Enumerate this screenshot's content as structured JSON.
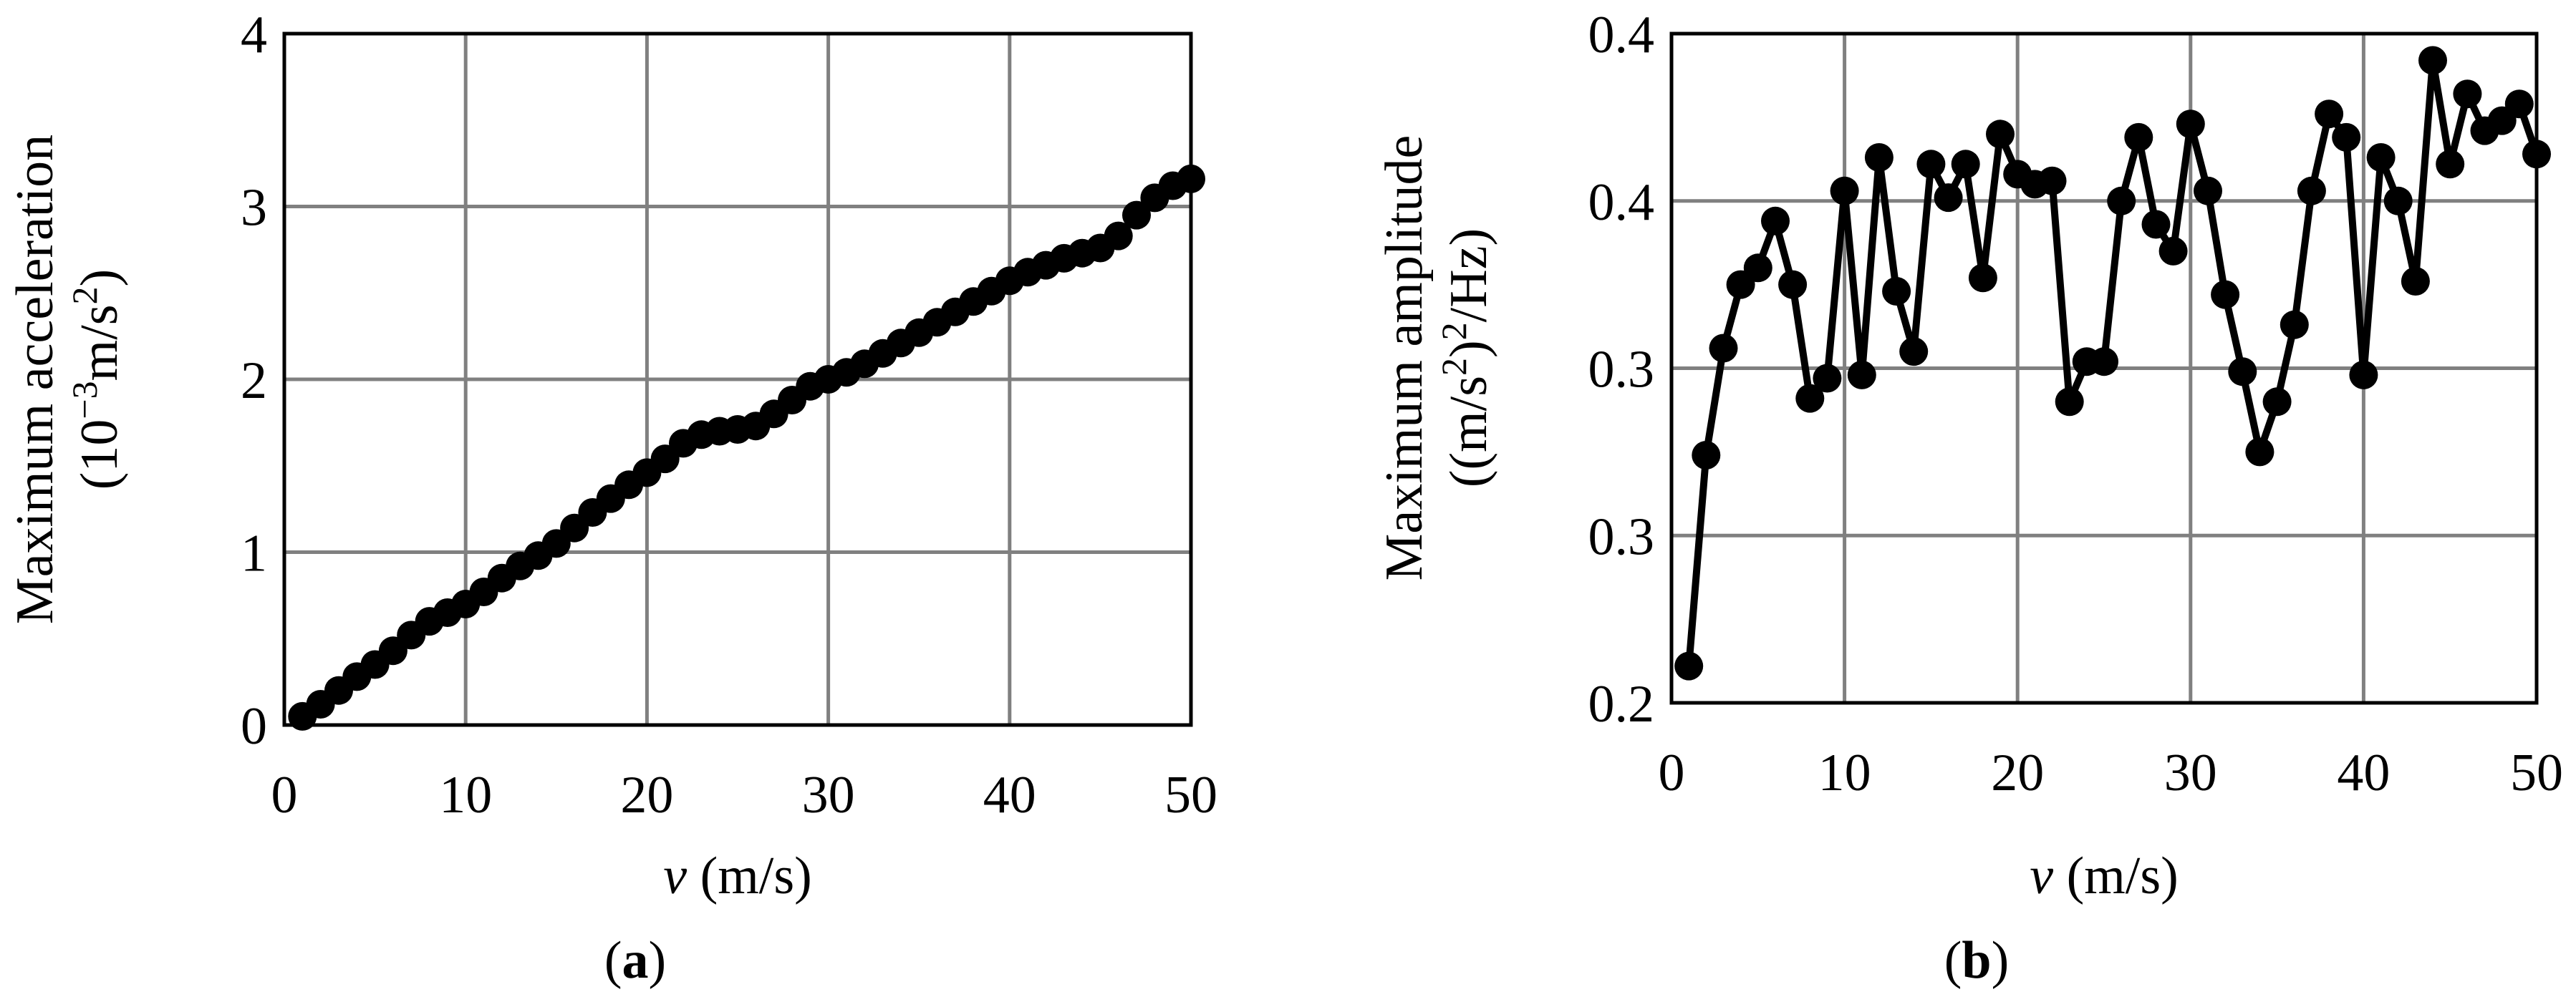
{
  "chart_data": [
    {
      "type": "line",
      "panel_label": "a",
      "ylabel_line1": "Maximum acceleration",
      "ylabel_line2_prefix": "(10",
      "ylabel_line2_exp": "−3",
      "ylabel_line2_mid": "m/s",
      "ylabel_line2_exp2": "2",
      "ylabel_line2_suffix": ")",
      "xlabel_var": "v",
      "xlabel_unit": " (m/s)",
      "xlim": [
        0,
        50
      ],
      "ylim": [
        0,
        4
      ],
      "xticks": [
        "0",
        "10",
        "20",
        "30",
        "40",
        "50"
      ],
      "yticks": [
        "0",
        "1",
        "2",
        "3",
        "4"
      ],
      "grid": true,
      "x": [
        1,
        2,
        3,
        4,
        5,
        6,
        7,
        8,
        9,
        10,
        11,
        12,
        13,
        14,
        15,
        16,
        17,
        18,
        19,
        20,
        21,
        22,
        23,
        24,
        25,
        26,
        27,
        28,
        29,
        30,
        31,
        32,
        33,
        34,
        35,
        36,
        37,
        38,
        39,
        40,
        41,
        42,
        43,
        44,
        45,
        46,
        47,
        48,
        49,
        50
      ],
      "y": [
        0.05,
        0.12,
        0.2,
        0.28,
        0.35,
        0.43,
        0.52,
        0.6,
        0.65,
        0.7,
        0.77,
        0.85,
        0.92,
        0.98,
        1.05,
        1.14,
        1.23,
        1.31,
        1.39,
        1.46,
        1.54,
        1.63,
        1.68,
        1.7,
        1.71,
        1.73,
        1.8,
        1.88,
        1.96,
        2.0,
        2.04,
        2.09,
        2.15,
        2.21,
        2.27,
        2.33,
        2.39,
        2.45,
        2.51,
        2.57,
        2.62,
        2.66,
        2.7,
        2.73,
        2.76,
        2.83,
        2.95,
        3.05,
        3.12,
        3.16
      ]
    },
    {
      "type": "line",
      "panel_label": "b",
      "ylabel_line1": "Maximum amplitude",
      "ylabel_line2_prefix": "((m/s",
      "ylabel_line2_exp": "2",
      "ylabel_line2_mid": ")",
      "ylabel_line2_exp2": "2",
      "ylabel_line2_suffix": "/Hz)",
      "xlabel_var": "v",
      "xlabel_unit": " (m/s)",
      "xlim": [
        0,
        50
      ],
      "ylim": [
        0.2,
        0.4
      ],
      "xticks": [
        "0",
        "10",
        "20",
        "30",
        "40",
        "50"
      ],
      "yticks": [
        "0.2",
        "0.3",
        "0.3",
        "0.4",
        "0.4"
      ],
      "grid": true,
      "x": [
        1,
        2,
        3,
        4,
        5,
        6,
        7,
        8,
        9,
        10,
        11,
        12,
        13,
        14,
        15,
        16,
        17,
        18,
        19,
        20,
        21,
        22,
        23,
        24,
        25,
        26,
        27,
        28,
        29,
        30,
        31,
        32,
        33,
        34,
        35,
        36,
        37,
        38,
        39,
        40,
        41,
        42,
        43,
        44,
        45,
        46,
        47,
        48,
        49,
        50
      ],
      "y": [
        0.211,
        0.274,
        0.306,
        0.325,
        0.33,
        0.344,
        0.325,
        0.291,
        0.297,
        0.353,
        0.298,
        0.363,
        0.323,
        0.305,
        0.361,
        0.351,
        0.361,
        0.327,
        0.37,
        0.358,
        0.355,
        0.356,
        0.29,
        0.302,
        0.302,
        0.35,
        0.369,
        0.343,
        0.335,
        0.373,
        0.353,
        0.322,
        0.299,
        0.275,
        0.29,
        0.313,
        0.353,
        0.376,
        0.369,
        0.298,
        0.363,
        0.35,
        0.326,
        0.392,
        0.361,
        0.382,
        0.371,
        0.374,
        0.379,
        0.364
      ]
    }
  ]
}
